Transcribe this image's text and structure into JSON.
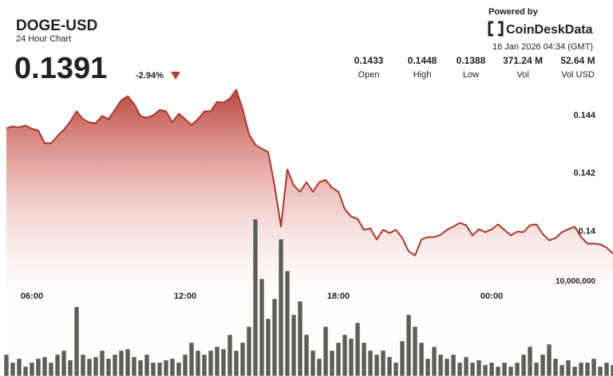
{
  "header": {
    "title": "DOGE-USD",
    "subtitle": "24 Hour Chart",
    "price": "0.1391",
    "change": "-2.94%",
    "powered_by": "Powered by",
    "brand": "CoinDeskData",
    "timestamp": "16 Jan 2026 04:34 (GMT)",
    "stats": [
      {
        "value": "0.1433",
        "label": "Open"
      },
      {
        "value": "0.1448",
        "label": "High"
      },
      {
        "value": "0.1388",
        "label": "Low"
      },
      {
        "value": "371.24 M",
        "label": "Vol"
      },
      {
        "value": "52.64 M",
        "label": "Vol USD"
      }
    ]
  },
  "chart_data": {
    "type": "line",
    "categories": [
      null,
      null,
      null,
      null,
      "06:00",
      null,
      null,
      null,
      null,
      null,
      null,
      null,
      null,
      null,
      null,
      null,
      null,
      null,
      null,
      null,
      null,
      null,
      null,
      null,
      null,
      null,
      null,
      null,
      "12:00",
      null,
      null,
      null,
      null,
      null,
      null,
      null,
      null,
      null,
      null,
      null,
      null,
      null,
      null,
      null,
      null,
      null,
      null,
      null,
      null,
      null,
      null,
      null,
      "18:00",
      null,
      null,
      null,
      null,
      null,
      null,
      null,
      null,
      null,
      null,
      null,
      null,
      null,
      null,
      null,
      null,
      null,
      null,
      null,
      null,
      null,
      null,
      null,
      "00:00",
      null,
      null,
      null,
      null,
      null,
      null,
      null,
      null,
      null,
      null,
      null,
      null,
      null,
      null,
      null,
      null,
      null,
      null,
      null
    ],
    "series": [
      {
        "color": "#b0342b",
        "values": [
          0.14353,
          0.14359,
          0.14356,
          0.14362,
          0.14351,
          0.14345,
          0.14301,
          0.14301,
          0.14326,
          0.14348,
          0.14375,
          0.14411,
          0.14384,
          0.14373,
          0.1437,
          0.14395,
          0.14384,
          0.14416,
          0.14449,
          0.14463,
          0.14436,
          0.14395,
          0.14389,
          0.14397,
          0.14416,
          0.14411,
          0.14373,
          0.14403,
          0.14384,
          0.14364,
          0.14384,
          0.14411,
          0.14411,
          0.14444,
          0.14441,
          0.14455,
          0.14485,
          0.14419,
          0.14332,
          0.14296,
          0.14282,
          0.14271,
          0.14156,
          0.14014,
          0.14211,
          0.14156,
          0.14134,
          0.14167,
          0.14134,
          0.14167,
          0.14175,
          0.14148,
          0.14134,
          0.14074,
          0.14049,
          0.14041,
          0.14003,
          0.14008,
          0.1397,
          0.14003,
          0.13992,
          0.14003,
          0.13975,
          0.13929,
          0.13915,
          0.1397,
          0.13978,
          0.13978,
          0.13986,
          0.14003,
          0.14014,
          0.14027,
          0.14019,
          0.13984,
          0.14005,
          0.13995,
          0.14005,
          0.14022,
          0.14003,
          0.13984,
          0.13997,
          0.13995,
          0.14019,
          0.14022,
          0.13989,
          0.13967,
          0.13975,
          0.13995,
          0.14005,
          0.14014,
          0.13978,
          0.13956,
          0.13956,
          0.13953,
          0.13942,
          0.13921
        ]
      },
      {
        "type": "bar",
        "axis": "y2",
        "color": "#5e5e57",
        "values": [
          2250000,
          1420000,
          1830000,
          1000000,
          1420000,
          1830000,
          2000000,
          1420000,
          2250000,
          2670000,
          1670000,
          7250000,
          2250000,
          1830000,
          2000000,
          2670000,
          1830000,
          2250000,
          2670000,
          2830000,
          2000000,
          1670000,
          2250000,
          1420000,
          1420000,
          1670000,
          1830000,
          1420000,
          2250000,
          3500000,
          2670000,
          2250000,
          2670000,
          3080000,
          2830000,
          4330000,
          2670000,
          3500000,
          5170000,
          16420000,
          10170000,
          6000000,
          8080000,
          14330000,
          11000000,
          6420000,
          7830000,
          4330000,
          2670000,
          1830000,
          5170000,
          2670000,
          3500000,
          4330000,
          3920000,
          5580000,
          3500000,
          2670000,
          2250000,
          2670000,
          2000000,
          1420000,
          3670000,
          6420000,
          5170000,
          3500000,
          1830000,
          3080000,
          2250000,
          1830000,
          2250000,
          1420000,
          2000000,
          1420000,
          1670000,
          1170000,
          1420000,
          1000000,
          1420000,
          1000000,
          1420000,
          2250000,
          3080000,
          1420000,
          2250000,
          3330000,
          1830000,
          1170000,
          1670000,
          1000000,
          1420000,
          1420000,
          1830000,
          1000000,
          1420000,
          1170000
        ]
      }
    ],
    "ylim": [
      0.135,
      0.1452
    ],
    "yticks": [
      0.144,
      0.142,
      0.14
    ],
    "y2lim": [
      0,
      31000000
    ],
    "y2ticks": [
      {
        "value": 10000000,
        "label": "10,000,000"
      }
    ],
    "grid": false
  }
}
